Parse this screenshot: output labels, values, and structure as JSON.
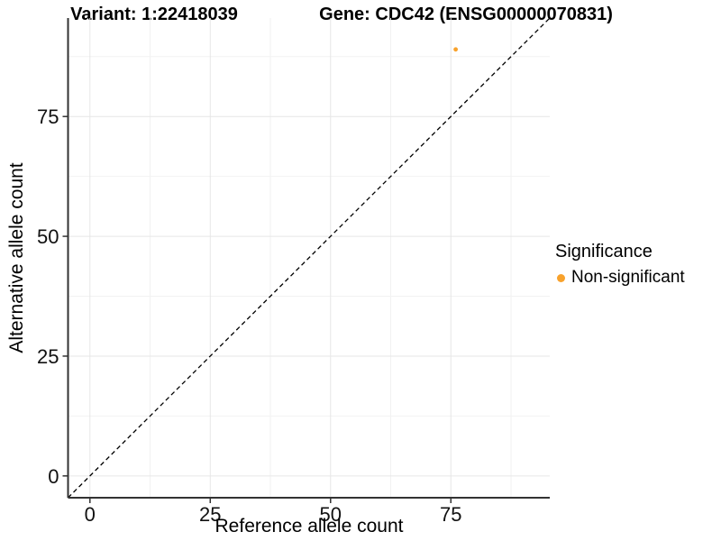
{
  "header": {
    "variant_title": "Variant: 1:22418039",
    "gene_title": "Gene: CDC42 (ENSG00000070831)"
  },
  "axes": {
    "x_label": "Reference allele count",
    "y_label": "Alternative allele count"
  },
  "legend": {
    "title": "Significance",
    "items": [
      {
        "label": "Non-significant",
        "color": "#F8A22C"
      }
    ]
  },
  "chart_data": {
    "type": "scatter",
    "title": "Variant: 1:22418039 — Gene: CDC42 (ENSG00000070831)",
    "xlabel": "Reference allele count",
    "ylabel": "Alternative allele count",
    "xlim": [
      -4.55,
      95.55
    ],
    "ylim": [
      -4.55,
      95.55
    ],
    "xticks": [
      0,
      25,
      50,
      75
    ],
    "yticks": [
      0,
      25,
      50,
      75
    ],
    "minor_xticks": [
      12.5,
      37.5,
      62.5,
      87.5
    ],
    "minor_yticks": [
      12.5,
      37.5,
      62.5,
      87.5
    ],
    "grid": "major+minor",
    "legend_position": "right",
    "series": [
      {
        "name": "Non-significant",
        "color": "#F8A22C",
        "points": [
          {
            "x": 76,
            "y": 89
          }
        ]
      }
    ],
    "identity_line": {
      "style": "dashed",
      "slope": 1,
      "intercept": 0,
      "color": "#000000"
    }
  }
}
